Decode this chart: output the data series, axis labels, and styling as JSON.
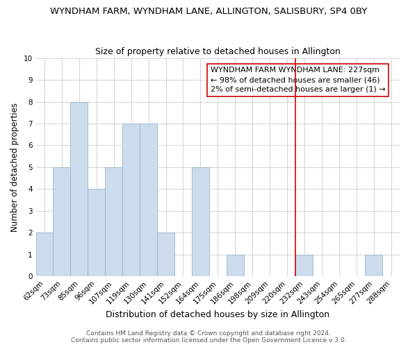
{
  "title": "WYNDHAM FARM, WYNDHAM LANE, ALLINGTON, SALISBURY, SP4 0BY",
  "subtitle": "Size of property relative to detached houses in Allington",
  "xlabel": "Distribution of detached houses by size in Allington",
  "ylabel": "Number of detached properties",
  "bar_color": "#ccdcec",
  "bar_edge_color": "#9ab5cc",
  "grid_color": "#cccccc",
  "bin_labels": [
    "62sqm",
    "73sqm",
    "85sqm",
    "96sqm",
    "107sqm",
    "119sqm",
    "130sqm",
    "141sqm",
    "152sqm",
    "164sqm",
    "175sqm",
    "186sqm",
    "198sqm",
    "209sqm",
    "220sqm",
    "232sqm",
    "243sqm",
    "254sqm",
    "265sqm",
    "277sqm",
    "288sqm"
  ],
  "bar_heights": [
    2,
    5,
    8,
    4,
    5,
    7,
    7,
    2,
    0,
    5,
    0,
    1,
    0,
    0,
    0,
    1,
    0,
    0,
    0,
    1,
    0
  ],
  "ylim": [
    0,
    10
  ],
  "yticks": [
    0,
    1,
    2,
    3,
    4,
    5,
    6,
    7,
    8,
    9,
    10
  ],
  "reference_line_color": "#cc0000",
  "ref_line_bin_index": 15,
  "annotation_text": "WYNDHAM FARM WYNDHAM LANE: 227sqm\n← 98% of detached houses are smaller (46)\n2% of semi-detached houses are larger (1) →",
  "annotation_box_color": "#ffffff",
  "annotation_box_edge_color": "#cc0000",
  "footer_line1": "Contains HM Land Registry data © Crown copyright and database right 2024.",
  "footer_line2": "Contains public sector information licensed under the Open Government Licence v 3.0.",
  "background_color": "#ffffff",
  "title_fontsize": 9.5,
  "subtitle_fontsize": 9,
  "xlabel_fontsize": 9,
  "ylabel_fontsize": 8.5,
  "tick_fontsize": 7.5,
  "annotation_fontsize": 8,
  "footer_fontsize": 6.5
}
